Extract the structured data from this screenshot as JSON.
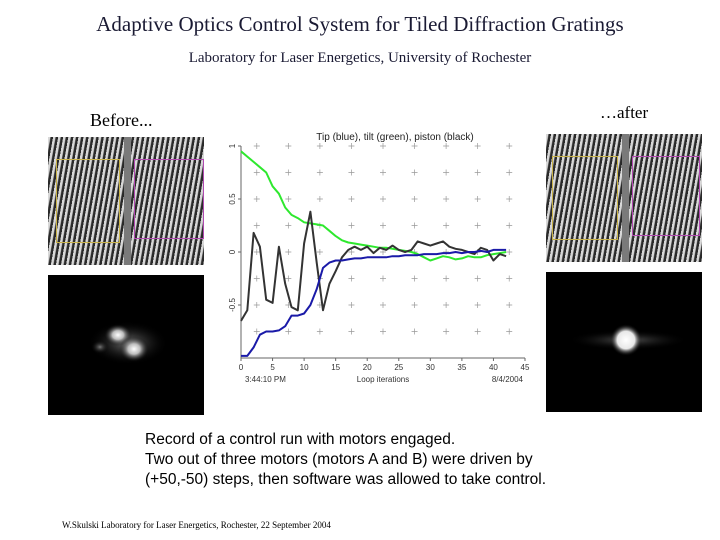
{
  "slide": {
    "title": "Adaptive Optics Control System for Tiled Diffraction Gratings",
    "subtitle": "Laboratory for Laser Energetics, University of Rochester",
    "before_label": "Before...",
    "after_label": "…after",
    "caption_lines": [
      "Record of a control run with motors engaged.",
      "Two out of three motors (motors A and B) were driven by",
      "(+50,-50) steps, then software was allowed to take control."
    ],
    "footer": "W.Skulski   Laboratory for Laser Energetics,  Rochester, 22 September 2004"
  },
  "colors": {
    "tip": "#1a1aa8",
    "tilt": "#2ee82e",
    "piston": "#333333",
    "roi_left": "#c8b24a",
    "roi_right": "#b04ab0"
  },
  "chart_data": {
    "type": "line",
    "title": "Tip (blue), tilt (green), piston (black)",
    "xlabel": "Loop iterations",
    "bottom_left_label": "3:44:10 PM",
    "bottom_right_label": "8/4/2004",
    "xlim": [
      0,
      45
    ],
    "ylim": [
      -1,
      1
    ],
    "x_ticks": [
      0,
      5,
      10,
      15,
      20,
      25,
      30,
      35,
      40,
      45
    ],
    "y_ticks": [
      1,
      0.5,
      0,
      -0.5
    ],
    "y_tick_labels": [
      "1",
      "0.5",
      "0",
      "-0.5"
    ],
    "series": [
      {
        "name": "Tip",
        "color": "#1a1aa8",
        "x": [
          0,
          1,
          2,
          3,
          4,
          5,
          6,
          7,
          8,
          9,
          10,
          11,
          12,
          13,
          14,
          15,
          16,
          17,
          18,
          19,
          20,
          21,
          22,
          23,
          24,
          25,
          26,
          27,
          28,
          29,
          30,
          31,
          32,
          33,
          34,
          35,
          36,
          37,
          38,
          39,
          40,
          41,
          42
        ],
        "y": [
          -0.98,
          -0.98,
          -0.9,
          -0.78,
          -0.75,
          -0.75,
          -0.74,
          -0.7,
          -0.6,
          -0.6,
          -0.58,
          -0.5,
          -0.35,
          -0.15,
          -0.1,
          -0.08,
          -0.08,
          -0.07,
          -0.06,
          -0.06,
          -0.05,
          -0.05,
          -0.05,
          -0.05,
          -0.04,
          -0.04,
          -0.03,
          -0.03,
          -0.03,
          -0.02,
          -0.02,
          -0.02,
          -0.01,
          -0.01,
          0,
          -0.01,
          0,
          0,
          0.01,
          0,
          0.02,
          0.02,
          0.02
        ]
      },
      {
        "name": "Tilt",
        "color": "#2ee82e",
        "x": [
          0,
          1,
          2,
          3,
          4,
          5,
          6,
          7,
          8,
          9,
          10,
          11,
          12,
          13,
          14,
          15,
          16,
          17,
          18,
          19,
          20,
          21,
          22,
          23,
          24,
          25,
          26,
          27,
          28,
          29,
          30,
          31,
          32,
          33,
          34,
          35,
          36,
          37,
          38,
          39,
          40,
          41,
          42
        ],
        "y": [
          0.95,
          0.9,
          0.85,
          0.8,
          0.75,
          0.62,
          0.55,
          0.42,
          0.35,
          0.32,
          0.28,
          0.27,
          0.26,
          0.25,
          0.2,
          0.15,
          0.11,
          0.09,
          0.08,
          0.07,
          0.06,
          0.05,
          0.04,
          0.04,
          0.03,
          0.02,
          0.01,
          0,
          -0.02,
          -0.05,
          -0.08,
          -0.06,
          -0.04,
          -0.05,
          -0.07,
          -0.06,
          -0.04,
          -0.05,
          -0.05,
          -0.03,
          -0.02,
          -0.01,
          0
        ]
      },
      {
        "name": "Piston",
        "color": "#333333",
        "x": [
          0,
          1,
          2,
          3,
          4,
          5,
          6,
          7,
          8,
          9,
          10,
          11,
          12,
          13,
          14,
          15,
          16,
          17,
          18,
          19,
          20,
          21,
          22,
          23,
          24,
          25,
          26,
          27,
          28,
          29,
          30,
          31,
          32,
          33,
          34,
          35,
          36,
          37,
          38,
          39,
          40,
          41,
          42
        ],
        "y": [
          -0.65,
          -0.55,
          0.18,
          0.05,
          -0.45,
          -0.48,
          0.05,
          -0.3,
          -0.52,
          -0.55,
          0.08,
          0.38,
          -0.1,
          -0.55,
          -0.3,
          -0.18,
          -0.05,
          0.02,
          0.05,
          0.02,
          0.05,
          -0.01,
          0.04,
          0.02,
          0.06,
          0.02,
          0,
          0.02,
          0.1,
          0.08,
          0.06,
          0.08,
          0.1,
          0.05,
          0.03,
          0.02,
          0,
          -0.02,
          0.04,
          0.02,
          -0.08,
          -0.02,
          -0.04
        ]
      }
    ]
  }
}
